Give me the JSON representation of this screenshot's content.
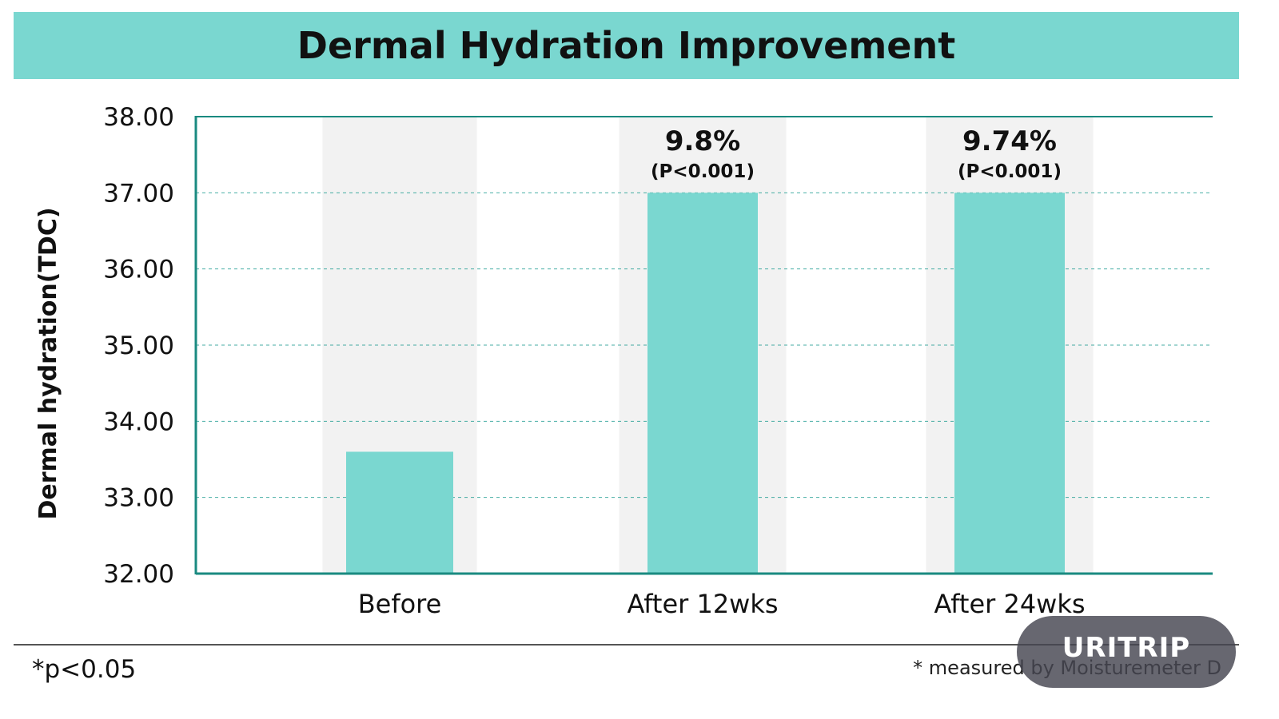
{
  "chart_data": {
    "type": "bar",
    "title": "Dermal Hydration Improvement",
    "ylabel": "Dermal hydration(TDC)",
    "xlabel": "",
    "ylim": [
      32,
      38
    ],
    "yticks": [
      "32.00",
      "33.00",
      "34.00",
      "35.00",
      "36.00",
      "37.00",
      "38.00"
    ],
    "categories": [
      "Before",
      "After 12wks",
      "After 24wks"
    ],
    "values": [
      33.6,
      37.0,
      37.0
    ],
    "annotations": [
      {
        "category": "Before",
        "value_label": "",
        "p_label": ""
      },
      {
        "category": "After 12wks",
        "value_label": "9.8%",
        "p_label": "(P<0.001)"
      },
      {
        "category": "After 24wks",
        "value_label": "9.74%",
        "p_label": "(P<0.001)"
      }
    ],
    "grid": "dashed horizontal",
    "bar_color": "#7ad7d0",
    "axis_color": "#1a8a80",
    "background_band_color": "#f2f2f2"
  },
  "footnotes": {
    "left": "*p<0.05",
    "right": "* measured by Moisturemeter D"
  },
  "watermark": "URITRIP"
}
